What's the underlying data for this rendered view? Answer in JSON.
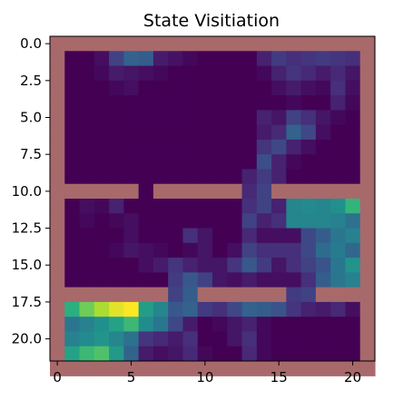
{
  "chart_data": {
    "type": "heatmap",
    "title": "State Visitiation",
    "xlabel": "",
    "ylabel": "",
    "x_range": [
      -0.5,
      21.5
    ],
    "y_range": [
      -0.5,
      21.5
    ],
    "y_inverted": true,
    "grid": false,
    "x_ticks": [
      0,
      5,
      10,
      15,
      20
    ],
    "x_tick_labels": [
      "0",
      "5",
      "10",
      "15",
      "20"
    ],
    "y_ticks": [
      0.0,
      2.5,
      5.0,
      7.5,
      10.0,
      12.5,
      15.0,
      17.5,
      20.0
    ],
    "y_tick_labels": [
      "0.0",
      "2.5",
      "5.0",
      "7.5",
      "10.0",
      "12.5",
      "15.0",
      "17.5",
      "20.0"
    ],
    "colormap": "viridis",
    "wall_color": "#a8696b",
    "wall_value": -1,
    "value_range": [
      0,
      1
    ],
    "grid_values": [
      [
        -1,
        -1,
        -1,
        -1,
        -1,
        -1,
        -1,
        -1,
        -1,
        -1,
        -1,
        -1,
        -1,
        -1,
        -1,
        -1,
        -1,
        -1,
        -1,
        -1,
        -1,
        -1
      ],
      [
        -1,
        0,
        0,
        0.04,
        0.2,
        0.32,
        0.3,
        0.08,
        0.05,
        0.02,
        0,
        0,
        0,
        0,
        0.1,
        0.18,
        0.14,
        0.16,
        0.18,
        0.16,
        0.14,
        -1
      ],
      [
        -1,
        0,
        0,
        0.02,
        0.08,
        0.06,
        0.04,
        0.02,
        0,
        0,
        0,
        0,
        0,
        0,
        0.02,
        0.1,
        0.16,
        0.12,
        0.08,
        0.12,
        0.06,
        -1
      ],
      [
        -1,
        0,
        0,
        0,
        0.02,
        0.04,
        0,
        0,
        0,
        0,
        0,
        0,
        0,
        0,
        0,
        0.04,
        0.08,
        0.04,
        0.02,
        0.14,
        0.04,
        -1
      ],
      [
        -1,
        0,
        0,
        0,
        0,
        0,
        0,
        0,
        0,
        0,
        0,
        0,
        0,
        0,
        0,
        0,
        0.02,
        0,
        0,
        0.1,
        0.02,
        -1
      ],
      [
        -1,
        0,
        0,
        0,
        0,
        0,
        0,
        0,
        0,
        0,
        0,
        0,
        0,
        0,
        0.1,
        0.06,
        0.2,
        0.14,
        0.06,
        0.02,
        0,
        -1
      ],
      [
        -1,
        0,
        0,
        0,
        0,
        0,
        0,
        0,
        0,
        0,
        0,
        0,
        0,
        0,
        0.08,
        0.12,
        0.32,
        0.22,
        0.04,
        0,
        0,
        -1
      ],
      [
        -1,
        0,
        0,
        0,
        0,
        0,
        0,
        0,
        0,
        0,
        0,
        0,
        0,
        0,
        0.16,
        0.22,
        0.1,
        0.04,
        0,
        0,
        0,
        -1
      ],
      [
        -1,
        0,
        0,
        0,
        0,
        0,
        0,
        0,
        0,
        0,
        0,
        0,
        0,
        0,
        0.24,
        0.1,
        0.02,
        0,
        0,
        0,
        0,
        -1
      ],
      [
        -1,
        0,
        0,
        0,
        0,
        0,
        0,
        0,
        0,
        0,
        0,
        0,
        0,
        0.1,
        0.18,
        0.1,
        0,
        0,
        0,
        0,
        0,
        -1
      ],
      [
        -1,
        -1,
        -1,
        -1,
        -1,
        -1,
        0,
        -1,
        -1,
        -1,
        -1,
        -1,
        -1,
        0.12,
        0.2,
        -1,
        -1,
        -1,
        -1,
        -1,
        -1,
        -1
      ],
      [
        -1,
        0,
        0.04,
        0.02,
        0.1,
        0,
        0,
        0,
        0,
        0,
        0,
        0,
        0,
        0.14,
        0.2,
        0.1,
        0.46,
        0.48,
        0.46,
        0.5,
        0.66,
        -1
      ],
      [
        -1,
        0,
        0.02,
        0,
        0.02,
        0.04,
        0,
        0,
        0,
        0,
        0,
        0,
        0,
        0.2,
        0.1,
        0.14,
        0.46,
        0.46,
        0.46,
        0.44,
        0.38,
        -1
      ],
      [
        -1,
        0,
        0,
        0,
        0,
        0.04,
        0,
        0,
        0,
        0.14,
        0.06,
        0,
        0,
        0.12,
        0.04,
        0.04,
        0.04,
        0.22,
        0.3,
        0.4,
        0.44,
        -1
      ],
      [
        -1,
        0,
        0,
        0,
        0.02,
        0.06,
        0.04,
        0.02,
        0,
        0.02,
        0.06,
        0,
        0.04,
        0.2,
        0.14,
        0.14,
        0.14,
        0.22,
        0.36,
        0.42,
        0.34,
        -1
      ],
      [
        -1,
        0,
        0,
        0,
        0,
        0,
        0.04,
        0.08,
        0.16,
        0.1,
        0.06,
        0.06,
        0.16,
        0.28,
        0.18,
        0.06,
        0.14,
        0.2,
        0.26,
        0.4,
        0.52,
        -1
      ],
      [
        -1,
        0,
        0,
        0,
        0,
        0,
        0,
        0,
        0.18,
        0.28,
        0.2,
        0.06,
        0.04,
        0.08,
        0.04,
        0.04,
        0.04,
        0.14,
        0.3,
        0.4,
        0.44,
        -1
      ],
      [
        -1,
        -1,
        -1,
        -1,
        -1,
        -1,
        -1,
        -1,
        0.2,
        0.3,
        -1,
        -1,
        -1,
        -1,
        -1,
        -1,
        0.18,
        0.2,
        -1,
        -1,
        -1,
        -1
      ],
      [
        -1,
        0.64,
        0.78,
        0.88,
        0.96,
        1.0,
        0.56,
        0.46,
        0.28,
        0.32,
        0.18,
        0.14,
        0.22,
        0.32,
        0.3,
        0.26,
        0.16,
        0.1,
        0.08,
        0.12,
        0.04,
        -1
      ],
      [
        -1,
        0.4,
        0.44,
        0.5,
        0.58,
        0.68,
        0.48,
        0.4,
        0.22,
        0.08,
        0,
        0.02,
        0.06,
        0.1,
        0.02,
        0,
        0,
        0,
        0,
        0,
        0,
        -1
      ],
      [
        -1,
        0.44,
        0.48,
        0.52,
        0.46,
        0.38,
        0.16,
        0.12,
        0.08,
        0.14,
        0,
        0,
        0.06,
        0.14,
        0.02,
        0,
        0,
        0,
        0,
        0,
        0,
        -1
      ],
      [
        -1,
        0.58,
        0.68,
        0.72,
        0.54,
        0.32,
        0.08,
        0.04,
        0.06,
        0.12,
        0.02,
        0,
        0,
        0.12,
        0.02,
        0,
        0,
        0,
        0,
        0,
        0,
        -1
      ],
      [
        -1,
        -1,
        -1,
        -1,
        -1,
        -1,
        -1,
        -1,
        -1,
        -1,
        -1,
        -1,
        -1,
        -1,
        -1,
        -1,
        -1,
        -1,
        -1,
        -1,
        -1,
        -1
      ]
    ]
  }
}
